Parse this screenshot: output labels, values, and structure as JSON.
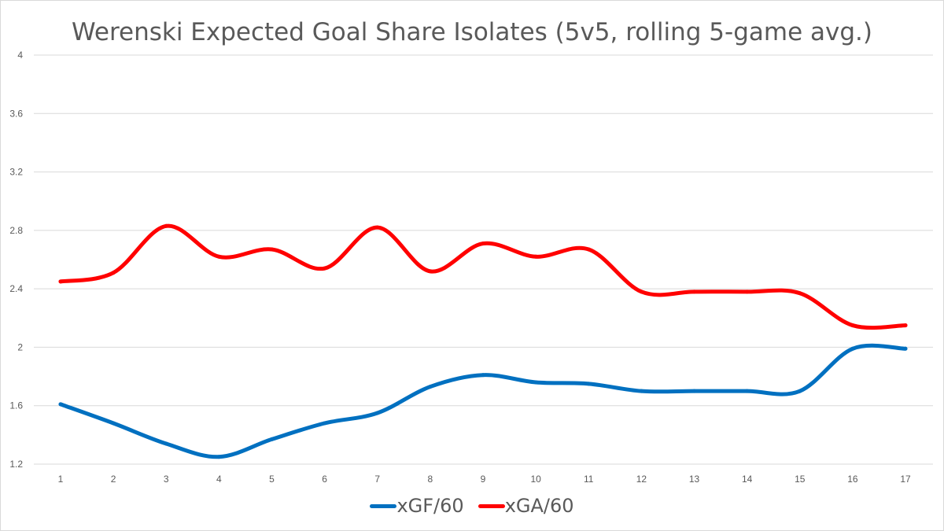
{
  "chart_data": {
    "type": "line",
    "title": "Werenski Expected Goal Share Isolates (5v5, rolling 5-game avg.)",
    "xlabel": "",
    "ylabel": "",
    "x": [
      1,
      2,
      3,
      4,
      5,
      6,
      7,
      8,
      9,
      10,
      11,
      12,
      13,
      14,
      15,
      16,
      17
    ],
    "ylim": [
      1.2,
      4
    ],
    "yticks": [
      "1.2",
      "1.6",
      "2",
      "2.4",
      "2.8",
      "3.2",
      "3.6",
      "4"
    ],
    "xticks": [
      "1",
      "2",
      "3",
      "4",
      "5",
      "6",
      "7",
      "8",
      "9",
      "10",
      "11",
      "12",
      "13",
      "14",
      "15",
      "16",
      "17"
    ],
    "grid": "horizontal",
    "smooth": true,
    "legend_position": "bottom",
    "series": [
      {
        "name": "xGF/60",
        "color": "#0070c0",
        "values": [
          1.61,
          1.48,
          1.34,
          1.25,
          1.37,
          1.48,
          1.55,
          1.73,
          1.81,
          1.76,
          1.75,
          1.7,
          1.7,
          1.7,
          1.7,
          1.99,
          1.99
        ]
      },
      {
        "name": "xGA/60",
        "color": "#ff0000",
        "values": [
          2.45,
          2.51,
          2.83,
          2.62,
          2.67,
          2.54,
          2.82,
          2.52,
          2.71,
          2.62,
          2.67,
          2.38,
          2.38,
          2.38,
          2.37,
          2.15,
          2.15
        ]
      }
    ]
  }
}
